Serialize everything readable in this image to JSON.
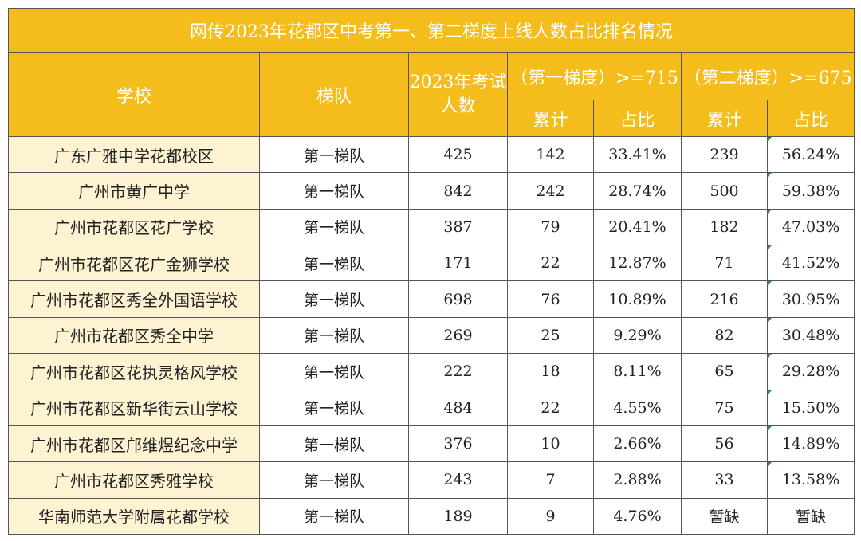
{
  "title": "网传2023年花都区中考第一、第二梯度上线人数占比排名情况",
  "headers": {
    "school": "学校",
    "tier": "梯队",
    "examinees": "2023年考试人数",
    "group1": "（第一梯度）>=715",
    "group2": "（第二梯度）>=675",
    "cumulative": "累计",
    "ratio": "占比"
  },
  "rows": [
    {
      "school": "广东广雅中学花都校区",
      "tier": "第一梯队",
      "examinees": "425",
      "g1_count": "142",
      "g1_ratio": "33.41%",
      "g2_count": "239",
      "g2_ratio": "56.24%"
    },
    {
      "school": "广州市黄广中学",
      "tier": "第一梯队",
      "examinees": "842",
      "g1_count": "242",
      "g1_ratio": "28.74%",
      "g2_count": "500",
      "g2_ratio": "59.38%"
    },
    {
      "school": "广州市花都区花广学校",
      "tier": "第一梯队",
      "examinees": "387",
      "g1_count": "79",
      "g1_ratio": "20.41%",
      "g2_count": "182",
      "g2_ratio": "47.03%"
    },
    {
      "school": "广州市花都区花广金狮学校",
      "tier": "第一梯队",
      "examinees": "171",
      "g1_count": "22",
      "g1_ratio": "12.87%",
      "g2_count": "71",
      "g2_ratio": "41.52%"
    },
    {
      "school": "广州市花都区秀全外国语学校",
      "tier": "第一梯队",
      "examinees": "698",
      "g1_count": "76",
      "g1_ratio": "10.89%",
      "g2_count": "216",
      "g2_ratio": "30.95%"
    },
    {
      "school": "广州市花都区秀全中学",
      "tier": "第一梯队",
      "examinees": "269",
      "g1_count": "25",
      "g1_ratio": "9.29%",
      "g2_count": "82",
      "g2_ratio": "30.48%"
    },
    {
      "school": "广州市花都区花执灵格风学校",
      "tier": "第一梯队",
      "examinees": "222",
      "g1_count": "18",
      "g1_ratio": "8.11%",
      "g2_count": "65",
      "g2_ratio": "29.28%"
    },
    {
      "school": "广州市花都区新华街云山学校",
      "tier": "第一梯队",
      "examinees": "484",
      "g1_count": "22",
      "g1_ratio": "4.55%",
      "g2_count": "75",
      "g2_ratio": "15.50%"
    },
    {
      "school": "广州市花都区邝维煜纪念中学",
      "tier": "第一梯队",
      "examinees": "376",
      "g1_count": "10",
      "g1_ratio": "2.66%",
      "g2_count": "56",
      "g2_ratio": "14.89%"
    },
    {
      "school": "广州市花都区秀雅学校",
      "tier": "第一梯队",
      "examinees": "243",
      "g1_count": "7",
      "g1_ratio": "2.88%",
      "g2_count": "33",
      "g2_ratio": "13.58%"
    },
    {
      "school": "华南师范大学附属花都学校",
      "tier": "第一梯队",
      "examinees": "189",
      "g1_count": "9",
      "g1_ratio": "4.76%",
      "g2_count": "暂缺",
      "g2_ratio": "暂缺"
    }
  ]
}
